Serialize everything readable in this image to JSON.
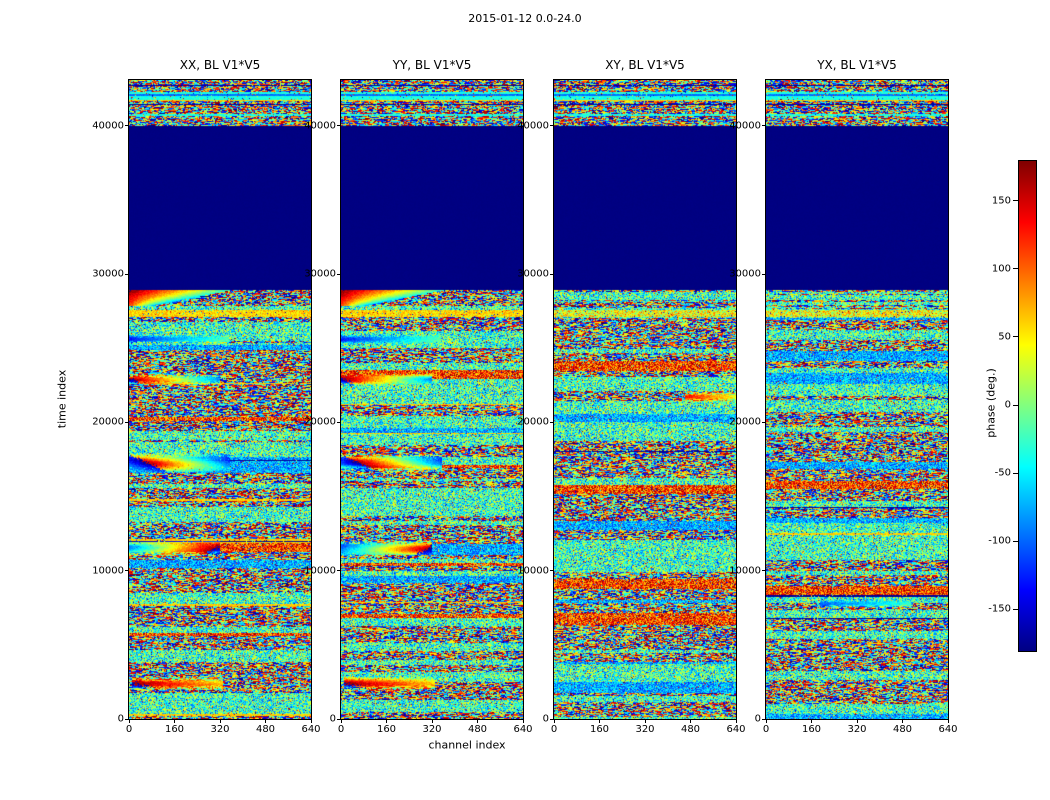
{
  "figure": {
    "title": "2015-01-12 0.0-24.0",
    "xlabel": "channel index",
    "ylabel": "time index",
    "background": "#ffffff"
  },
  "chart_data": {
    "type": "heatmap",
    "title": "2015-01-12 0.0-24.0",
    "xlabel": "channel index",
    "ylabel": "time index",
    "colormap": "jet",
    "x_range": [
      0,
      640
    ],
    "x_ticks": [
      0,
      160,
      320,
      480,
      640
    ],
    "y_range": [
      0,
      43100
    ],
    "y_ticks": [
      0,
      10000,
      20000,
      30000,
      40000
    ],
    "colorbar": {
      "label": "phase (deg.)",
      "range": [
        -180,
        180
      ],
      "ticks": [
        150,
        100,
        50,
        0,
        -50,
        -100,
        -150
      ]
    },
    "flat_region": {
      "time_start": 29000,
      "time_end": 39900,
      "phase": -179
    },
    "flame": {
      "rows": [
        210,
        226
      ],
      "max_frac": 0.55,
      "shrink": 0.027,
      "p_top": 175,
      "p_span": 200,
      "row_cool": 4
    },
    "band_types": {
      "speckle": [
        0,
        180
      ],
      "green": [
        -25,
        75
      ],
      "cyan": [
        -75,
        45
      ],
      "bright": [
        115,
        65
      ],
      "navy_line": [
        -172,
        6
      ],
      "yellow_line": [
        62,
        12
      ],
      "green_solid": [
        -35,
        14
      ],
      "cyan_line": [
        -95,
        10
      ],
      "yellow_band": [
        58,
        28
      ],
      "yellow_band_soft": [
        40,
        55
      ]
    },
    "header_bands": [
      {
        "h": 5,
        "type": "speckle"
      },
      {
        "h": 1,
        "type": "navy_line"
      },
      {
        "h": 6,
        "type": "speckle"
      },
      {
        "h": 2,
        "type": "green_solid"
      },
      {
        "h": 2,
        "type": "cyan_line"
      },
      {
        "h": 4,
        "type": "green_solid"
      },
      {
        "h": 1,
        "type": "yellow_line"
      },
      {
        "h": 3,
        "type": "speckle"
      },
      {
        "h": 1,
        "type": "navy_line"
      },
      {
        "h": 9,
        "type": "speckle"
      },
      {
        "h": 2,
        "type": "green_solid"
      },
      {
        "h": 10,
        "type": "speckle"
      }
    ],
    "subplots": [
      {
        "title": "XX, BL V1*V5",
        "seed": 1101,
        "flame": true,
        "weights": {
          "speckle": 0.42,
          "green": 0.3,
          "cyan": 0.08,
          "bright": 0.1,
          "navy_line": 0.05,
          "yellow_line": 0.05
        },
        "streaks": [
          {
            "r0": 255,
            "r1": 263,
            "xf0": 0,
            "xf1": 0.55,
            "p0": -150,
            "p1": -30,
            "slope": 4
          },
          {
            "r0": 294,
            "r1": 304,
            "xf0": 0,
            "xf1": 0.5,
            "p0": 165,
            "p1": -120,
            "slope": 5
          },
          {
            "r0": 374,
            "r1": 391,
            "xf0": 0,
            "xf1": 0.56,
            "p0": 175,
            "p1": -175,
            "slope": 8
          },
          {
            "r0": 461,
            "r1": 475,
            "xf0": 0,
            "xf1": 0.5,
            "p0": -140,
            "p1": 150,
            "slope": 6
          },
          {
            "r0": 597,
            "r1": 609,
            "xf0": 0.02,
            "xf1": 0.52,
            "p0": 160,
            "p1": 40,
            "slope": 4
          }
        ]
      },
      {
        "title": "YY, BL V1*V5",
        "seed": 2202,
        "flame": true,
        "weights": {
          "speckle": 0.42,
          "green": 0.3,
          "cyan": 0.08,
          "bright": 0.1,
          "navy_line": 0.05,
          "yellow_line": 0.05
        },
        "streaks": [
          {
            "r0": 255,
            "r1": 263,
            "xf0": 0,
            "xf1": 0.55,
            "p0": -150,
            "p1": -30,
            "slope": 4
          },
          {
            "r0": 294,
            "r1": 304,
            "xf0": 0,
            "xf1": 0.5,
            "p0": 165,
            "p1": -120,
            "slope": 5
          },
          {
            "r0": 374,
            "r1": 391,
            "xf0": 0,
            "xf1": 0.56,
            "p0": 175,
            "p1": -175,
            "slope": 8
          },
          {
            "r0": 461,
            "r1": 475,
            "xf0": 0,
            "xf1": 0.5,
            "p0": -140,
            "p1": 150,
            "slope": 6
          },
          {
            "r0": 597,
            "r1": 609,
            "xf0": 0.02,
            "xf1": 0.52,
            "p0": 160,
            "p1": 40,
            "slope": 4
          }
        ]
      },
      {
        "title": "XY, BL V1*V5",
        "seed": 3303,
        "flame": false,
        "weights": {
          "speckle": 0.4,
          "green": 0.38,
          "cyan": 0.1,
          "bright": 0.04,
          "navy_line": 0.05,
          "yellow_line": 0.03
        },
        "streaks": [
          {
            "r0": 312,
            "r1": 321,
            "xf0": 0.72,
            "xf1": 1.0,
            "p0": 130,
            "p1": 30,
            "slope": 3
          }
        ]
      },
      {
        "title": "YX, BL V1*V5",
        "seed": 4404,
        "flame": false,
        "weights": {
          "speckle": 0.4,
          "green": 0.38,
          "cyan": 0.1,
          "bright": 0.04,
          "navy_line": 0.05,
          "yellow_line": 0.03
        },
        "streaks": [
          {
            "r0": 520,
            "r1": 527,
            "xf0": 0.3,
            "xf1": 0.8,
            "p0": -120,
            "p1": -40,
            "slope": 3
          }
        ]
      }
    ]
  }
}
